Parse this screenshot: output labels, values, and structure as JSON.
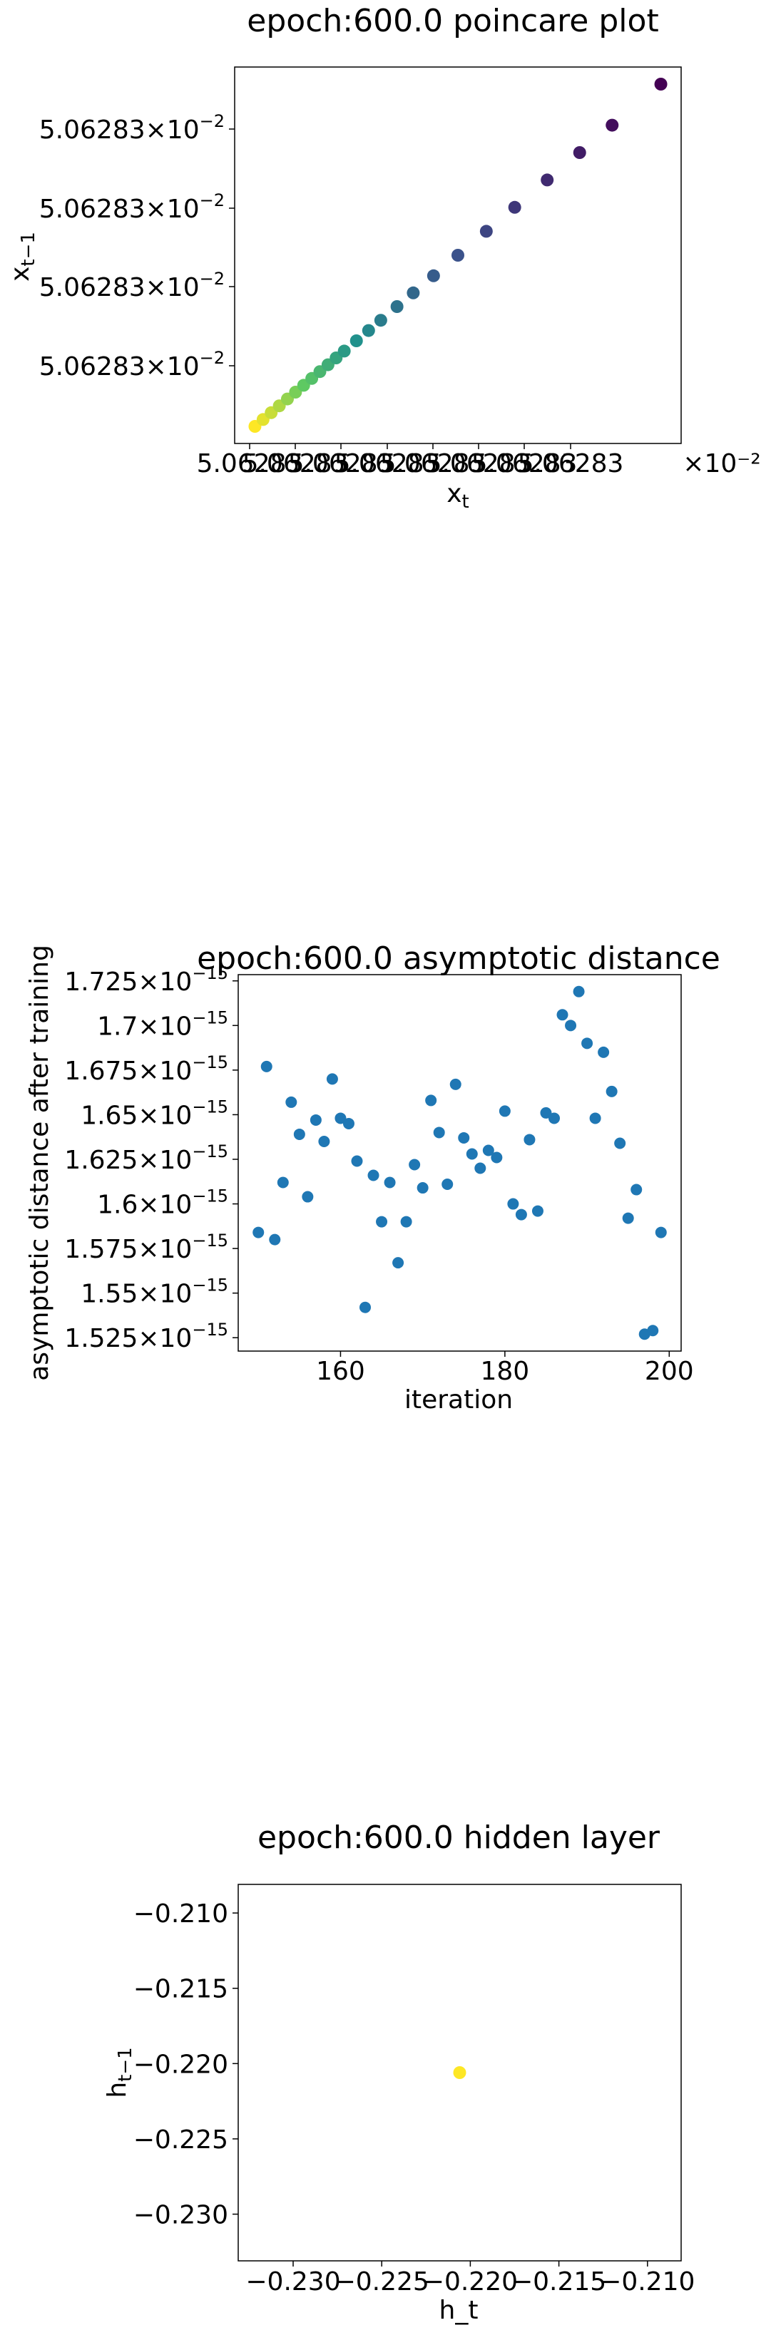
{
  "chart_data": [
    {
      "type": "scatter",
      "title": "epoch:600.0 poincare plot",
      "xlabel_base": "x",
      "xlabel_sub": "t",
      "ylabel_base": "x",
      "ylabel_sub": "t−1",
      "xticks": [
        "5.06283",
        "5.06283",
        "5.06283",
        "5.06283",
        "5.06283",
        "5.06283",
        "5.06283",
        "5.06283"
      ],
      "xtick_exp": "×10⁻²",
      "yticks": [
        "5.06283",
        "5.06283",
        "5.06283",
        "5.06283"
      ],
      "ytick_exp": "×10",
      "ytick_pow": "−2",
      "colormap": [
        "#440154",
        "#3b528b",
        "#21918c",
        "#5ec962",
        "#fde725"
      ],
      "x": [
        0.0,
        0.02,
        0.04,
        0.06,
        0.08,
        0.1,
        0.12,
        0.14,
        0.16,
        0.18,
        0.2,
        0.22,
        0.25,
        0.28,
        0.31,
        0.35,
        0.39,
        0.44,
        0.5,
        0.57,
        0.64,
        0.72,
        0.8,
        0.88,
        1.0
      ],
      "y": [
        0.0,
        0.02,
        0.04,
        0.06,
        0.08,
        0.1,
        0.12,
        0.14,
        0.16,
        0.18,
        0.2,
        0.22,
        0.25,
        0.28,
        0.31,
        0.35,
        0.39,
        0.44,
        0.5,
        0.57,
        0.64,
        0.72,
        0.8,
        0.88,
        1.0
      ],
      "xlim": [
        -0.05,
        1.05
      ],
      "ylim": [
        -0.05,
        1.05
      ]
    },
    {
      "type": "scatter",
      "title": "epoch:600.0 asymptotic distance",
      "xlabel": "iteration",
      "ylabel": "asymptotic distance after training",
      "xticks": [
        160,
        180,
        200
      ],
      "yticks": [
        {
          "v": 1.525,
          "label": "1.525"
        },
        {
          "v": 1.55,
          "label": "1.55"
        },
        {
          "v": 1.575,
          "label": "1.575"
        },
        {
          "v": 1.6,
          "label": "1.6"
        },
        {
          "v": 1.625,
          "label": "1.625"
        },
        {
          "v": 1.65,
          "label": "1.65"
        },
        {
          "v": 1.675,
          "label": "1.675"
        },
        {
          "v": 1.7,
          "label": "1.7"
        },
        {
          "v": 1.725,
          "label": "1.725"
        }
      ],
      "ytick_exp": "×10",
      "ytick_pow": "−15",
      "color": "#1f77b4",
      "x": [
        150,
        151,
        152,
        153,
        154,
        155,
        156,
        157,
        158,
        159,
        160,
        161,
        162,
        163,
        164,
        165,
        166,
        167,
        168,
        169,
        170,
        171,
        172,
        173,
        174,
        175,
        176,
        177,
        178,
        179,
        180,
        181,
        182,
        183,
        184,
        185,
        186,
        187,
        188,
        189,
        190,
        191,
        192,
        193,
        194,
        195,
        196,
        197,
        198,
        199
      ],
      "y": [
        1.584,
        1.677,
        1.58,
        1.612,
        1.657,
        1.639,
        1.604,
        1.647,
        1.635,
        1.67,
        1.648,
        1.645,
        1.624,
        1.542,
        1.616,
        1.59,
        1.612,
        1.567,
        1.59,
        1.622,
        1.609,
        1.658,
        1.64,
        1.611,
        1.667,
        1.637,
        1.628,
        1.62,
        1.63,
        1.626,
        1.652,
        1.6,
        1.594,
        1.636,
        1.596,
        1.651,
        1.648,
        1.706,
        1.7,
        1.719,
        1.69,
        1.648,
        1.685,
        1.663,
        1.634,
        1.592,
        1.608,
        1.527,
        1.529,
        1.584
      ],
      "xlim": [
        147.55,
        201.45
      ],
      "ylim": [
        1.5175,
        1.7285
      ]
    },
    {
      "type": "scatter",
      "title": "epoch:600.0 hidden layer",
      "xlabel": "h_t",
      "ylabel_base": "h",
      "ylabel_sub": "t−1",
      "xticks": [
        -0.23,
        -0.225,
        -0.22,
        -0.215,
        -0.21
      ],
      "yticks": [
        -0.21,
        -0.215,
        -0.22,
        -0.225,
        -0.23
      ],
      "color": "#fde725",
      "x": [
        -0.2206
      ],
      "y": [
        -0.2206
      ],
      "xlim": [
        -0.2331,
        -0.2081
      ],
      "ylim": [
        -0.2331,
        -0.2081
      ]
    }
  ]
}
